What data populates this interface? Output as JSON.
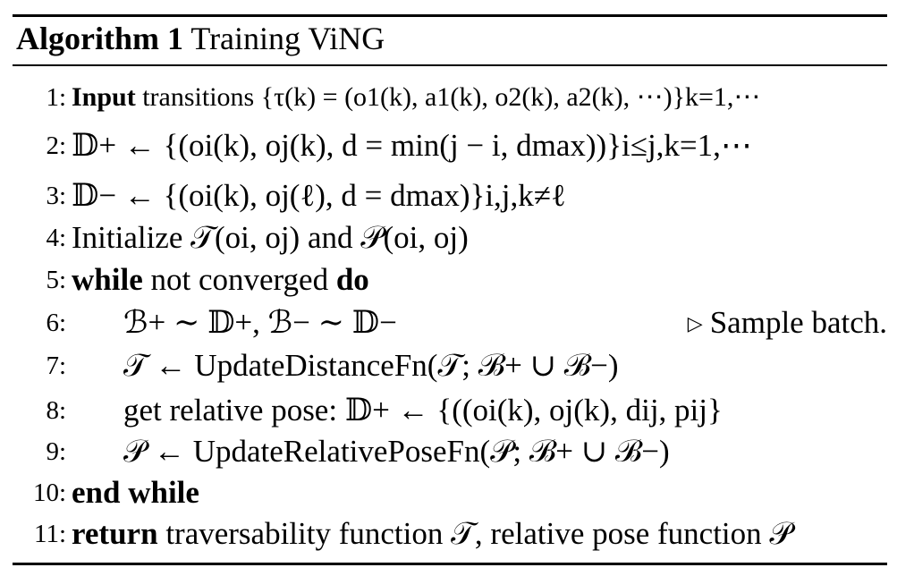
{
  "algorithm": {
    "label": "Algorithm 1",
    "title": "Training ViNG",
    "lines": [
      {
        "number": "1:",
        "keyword": "Input",
        "text": " transitions {τ(k) = (o1(k), a1(k), o2(k), a2(k), ⋯)}k=1,⋯"
      },
      {
        "number": "2:",
        "text": "𝔻+ ← {(oi(k), oj(k), d = min(j − i, dmax))}i≤j,k=1,⋯"
      },
      {
        "number": "3:",
        "text": "𝔻− ← {(oi(k), oj(ℓ), d = dmax)}i,j,k≠ℓ"
      },
      {
        "number": "4:",
        "text": "Initialize 𝒯(oi, oj) and 𝒫(oi, oj)"
      },
      {
        "number": "5:",
        "keyword": "while",
        "text": " not converged ",
        "keyword2": "do"
      },
      {
        "number": "6:",
        "text": "ℬ+ ∼ 𝔻+, ℬ− ∼ 𝔻−",
        "comment_symbol": "▷",
        "comment": "Sample batch."
      },
      {
        "number": "7:",
        "text": "𝒯 ← UpdateDistanceFn(𝒯; ℬ+ ∪ ℬ−)"
      },
      {
        "number": "8:",
        "text": "get relative pose: 𝔻+ ← {((oi(k), oj(k), dij, pij}"
      },
      {
        "number": "9:",
        "text": "𝒫 ← UpdateRelativePoseFn(𝒫; ℬ+ ∪ ℬ−)"
      },
      {
        "number": "10:",
        "keyword": "end while"
      },
      {
        "number": "11:",
        "keyword": "return",
        "text": " traversability function 𝒯, relative pose function 𝒫"
      }
    ]
  }
}
